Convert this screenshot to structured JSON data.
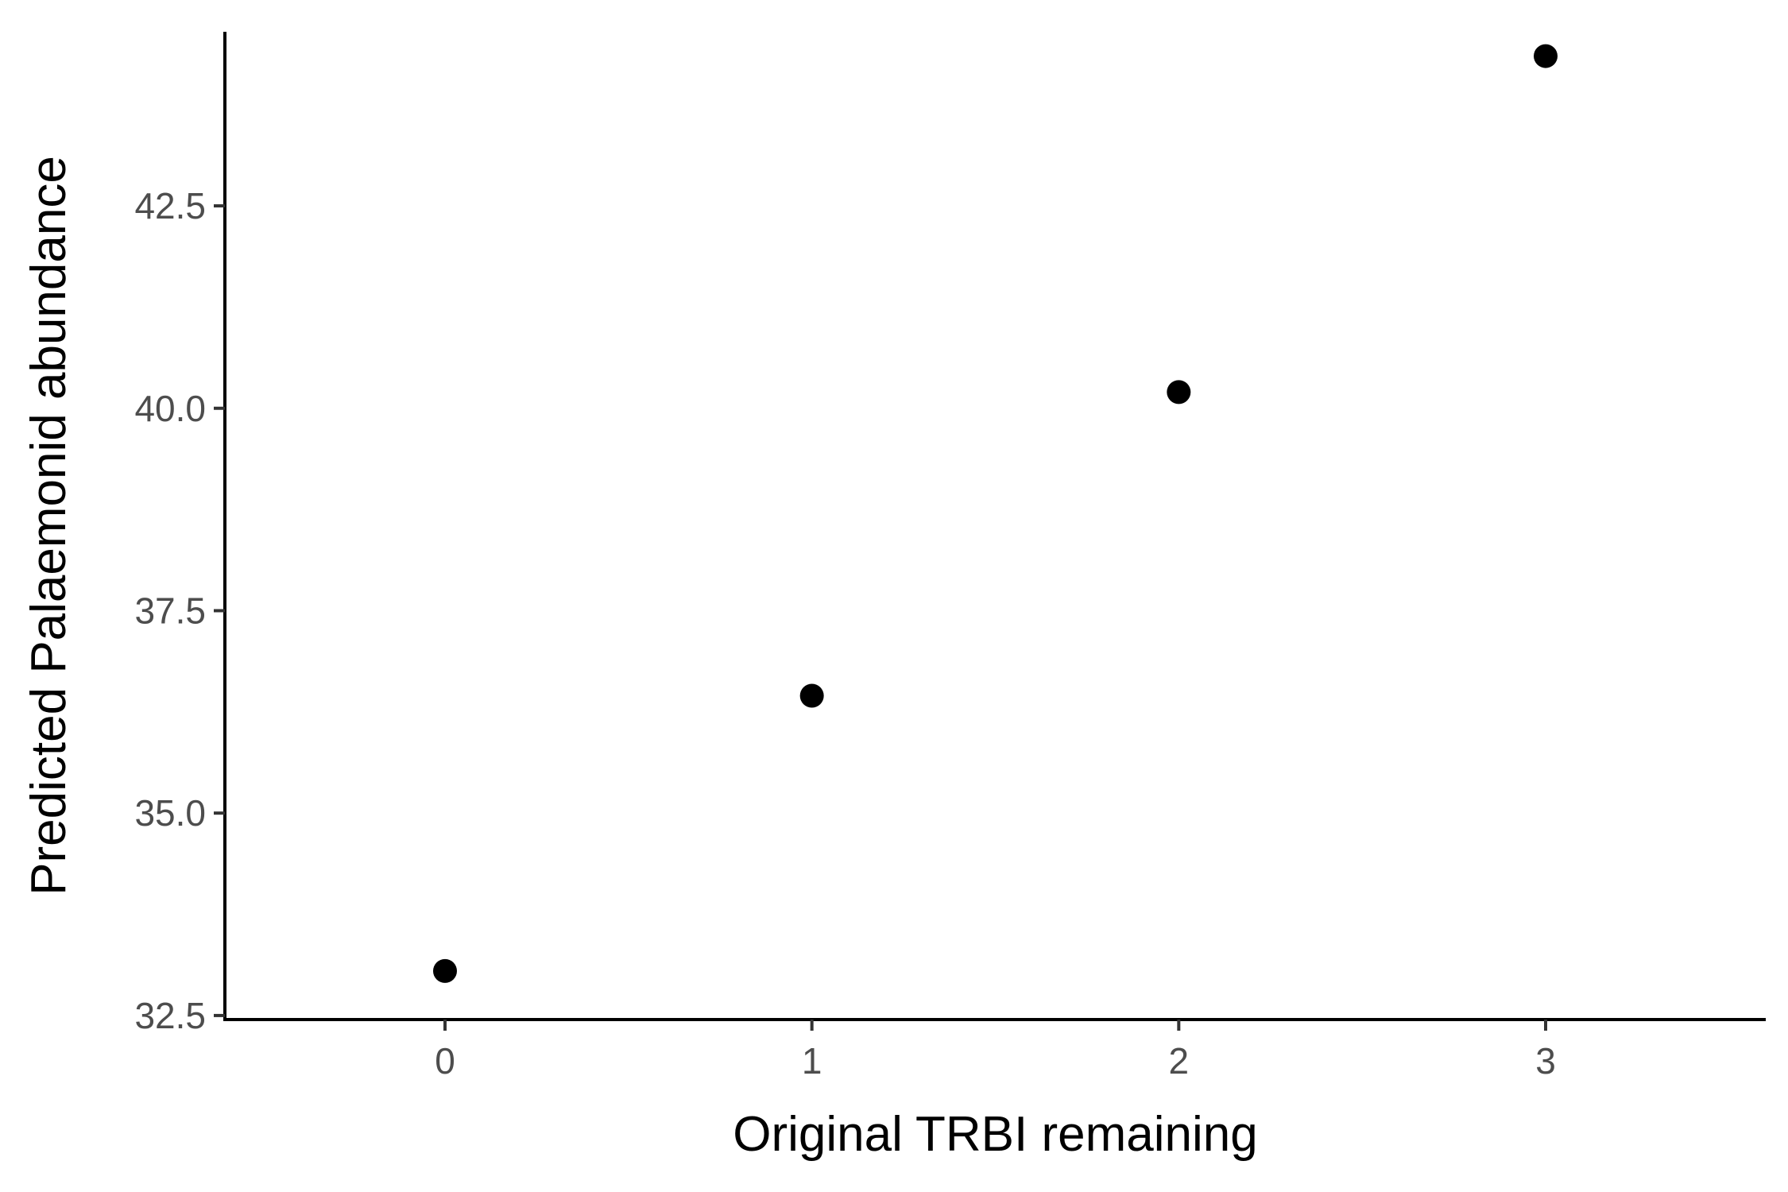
{
  "chart_data": {
    "type": "scatter",
    "title": "",
    "xlabel": "Original TRBI remaining",
    "ylabel": "Predicted Palaemonid abundance",
    "xlim": [
      -0.6,
      3.6
    ],
    "ylim": [
      32.45,
      44.65
    ],
    "xticks": [
      0,
      1,
      2,
      3
    ],
    "xtick_labels": [
      "0",
      "1",
      "2",
      "3"
    ],
    "yticks": [
      32.5,
      35.0,
      37.5,
      40.0,
      42.5
    ],
    "ytick_labels": [
      "32.5",
      "35.0",
      "37.5",
      "40.0",
      "42.5"
    ],
    "grid": false,
    "legend": "none",
    "point_color": "#000000",
    "x": [
      0,
      1,
      2,
      3
    ],
    "y": [
      33.05,
      36.45,
      40.2,
      44.35
    ]
  }
}
